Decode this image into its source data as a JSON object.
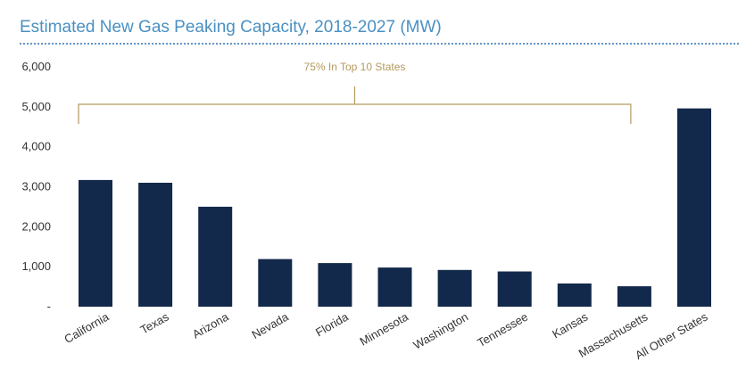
{
  "title": "Estimated New Gas Peaking Capacity, 2018-2027 (MW)",
  "colors": {
    "bar": "#13294b",
    "title": "#4a90c2",
    "title_rule": "#2f74b5",
    "annotation": "#b59a5e",
    "axis_text": "#333333"
  },
  "chart_data": {
    "type": "bar",
    "title": "Estimated New Gas Peaking Capacity, 2018-2027 (MW)",
    "categories": [
      "California",
      "Texas",
      "Arizona",
      "Nevada",
      "Florida",
      "Minnesota",
      "Washington",
      "Tennessee",
      "Kansas",
      "Massachusetts",
      "All Other States"
    ],
    "values": [
      3170,
      3100,
      2500,
      1190,
      1090,
      980,
      920,
      880,
      580,
      510,
      4960
    ],
    "ylim": [
      0,
      6000
    ],
    "yticks": [
      0,
      1000,
      2000,
      3000,
      4000,
      5000,
      6000
    ],
    "ytick_labels": [
      "-",
      "1,000",
      "2,000",
      "3,000",
      "4,000",
      "5,000",
      "6,000"
    ],
    "xlabel": "",
    "ylabel": "",
    "grid": false,
    "legend": "none",
    "annotation": {
      "text": "75% In Top 10 States",
      "span": [
        "California",
        "Massachusetts"
      ]
    }
  }
}
